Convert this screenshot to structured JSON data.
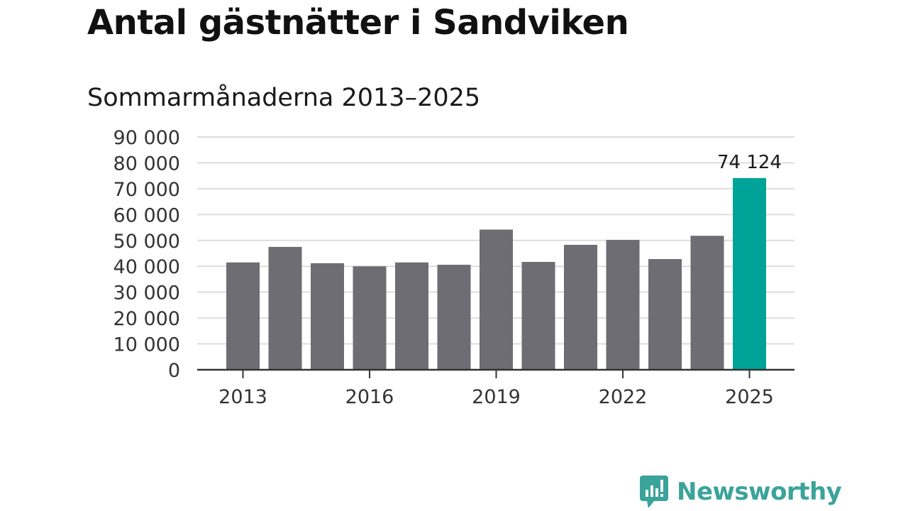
{
  "header": {
    "title": "Antal gästnätter i Sandviken",
    "subtitle": "Sommarmånaderna 2013–2025"
  },
  "brand": {
    "name": "Newsworthy",
    "icon": "newsworthy-logo-icon",
    "color": "#3aa39a"
  },
  "chart_data": {
    "type": "bar",
    "categories": [
      "2013",
      "2014",
      "2015",
      "2016",
      "2017",
      "2018",
      "2019",
      "2020",
      "2021",
      "2022",
      "2023",
      "2024",
      "2025"
    ],
    "values": [
      41500,
      47500,
      41200,
      40000,
      41500,
      40600,
      54200,
      41700,
      48300,
      50200,
      42800,
      51800,
      74124
    ],
    "x_tick_labels": [
      "2013",
      "2016",
      "2019",
      "2022",
      "2025"
    ],
    "y_ticks": [
      0,
      10000,
      20000,
      30000,
      40000,
      50000,
      60000,
      70000,
      80000,
      90000
    ],
    "y_tick_labels": [
      "0",
      "10 000",
      "20 000",
      "30 000",
      "40 000",
      "50 000",
      "60 000",
      "70 000",
      "80 000",
      "90 000"
    ],
    "ylim": [
      0,
      90000
    ],
    "grid": true,
    "bar_color": "#6e6d73",
    "highlight_color": "#00a398",
    "highlight_index": 12,
    "annotation": "74 124",
    "xlabel": "",
    "ylabel": ""
  }
}
